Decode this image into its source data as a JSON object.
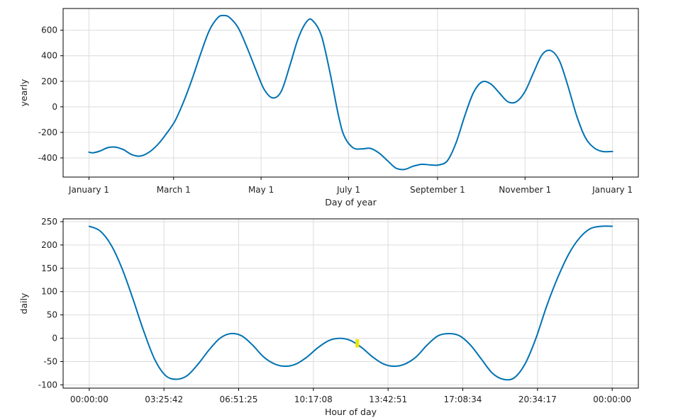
{
  "chart_data": [
    {
      "type": "line",
      "xlabel": "Day of year",
      "ylabel": "yearly",
      "x_ticks": [
        "January 1",
        "March 1",
        "May 1",
        "July 1",
        "September 1",
        "November 1",
        "January 1"
      ],
      "x_tick_days": [
        0,
        59,
        120,
        181,
        243,
        304,
        365
      ],
      "y_ticks": [
        "600",
        "400",
        "200",
        "0",
        "-200",
        "-400"
      ],
      "y_tick_values": [
        600,
        400,
        200,
        0,
        -200,
        -400
      ],
      "xlim": [
        -18,
        383
      ],
      "ylim": [
        -550,
        770
      ],
      "grid": true,
      "series": [
        {
          "color": "#0072b2",
          "x": [
            0,
            3,
            8,
            13,
            18,
            24,
            30,
            36,
            42,
            48,
            54,
            60,
            66,
            72,
            78,
            84,
            90,
            94,
            98,
            104,
            110,
            116,
            122,
            128,
            134,
            140,
            146,
            152,
            156,
            162,
            168,
            174,
            178,
            184,
            190,
            196,
            202,
            208,
            214,
            220,
            226,
            232,
            238,
            244,
            250,
            256,
            262,
            268,
            274,
            280,
            286,
            292,
            298,
            304,
            310,
            316,
            322,
            328,
            334,
            340,
            346,
            352,
            358,
            365
          ],
          "values": [
            -355,
            -360,
            -345,
            -320,
            -315,
            -335,
            -375,
            -385,
            -355,
            -295,
            -210,
            -110,
            40,
            220,
            420,
            600,
            700,
            715,
            700,
            620,
            470,
            300,
            140,
            70,
            120,
            320,
            540,
            670,
            675,
            560,
            270,
            -70,
            -230,
            -320,
            -330,
            -325,
            -360,
            -420,
            -480,
            -490,
            -465,
            -450,
            -455,
            -455,
            -420,
            -280,
            -70,
            110,
            195,
            180,
            110,
            40,
            40,
            120,
            270,
            410,
            440,
            360,
            160,
            -70,
            -240,
            -320,
            -350,
            -350
          ]
        }
      ]
    },
    {
      "type": "line",
      "xlabel": "Hour of day",
      "ylabel": "daily",
      "x_ticks": [
        "00:00:00",
        "03:25:42",
        "06:51:25",
        "10:17:08",
        "13:42:51",
        "17:08:34",
        "20:34:17",
        "00:00:00"
      ],
      "x_tick_hours": [
        0,
        3.4286,
        6.8571,
        10.2857,
        13.7143,
        17.1429,
        20.5714,
        24
      ],
      "y_ticks": [
        "250",
        "200",
        "150",
        "100",
        "50",
        "0",
        "-50",
        "-100"
      ],
      "y_tick_values": [
        250,
        200,
        150,
        100,
        50,
        0,
        -50,
        -100
      ],
      "xlim": [
        -1.2,
        25.2
      ],
      "ylim": [
        -107,
        256
      ],
      "grid": true,
      "series": [
        {
          "color": "#0072b2",
          "x": [
            0,
            0.5,
            1,
            1.5,
            2,
            2.5,
            3,
            3.5,
            4,
            4.5,
            5,
            5.5,
            6,
            6.5,
            7,
            7.5,
            8,
            8.5,
            9,
            9.5,
            10,
            10.5,
            11,
            11.5,
            12,
            12.5,
            13,
            13.5,
            14,
            14.5,
            15,
            15.5,
            16,
            16.5,
            17,
            17.5,
            18,
            18.5,
            19,
            19.5,
            20,
            20.5,
            21,
            21.5,
            22,
            22.5,
            23,
            23.5,
            24
          ],
          "values": [
            240,
            230,
            200,
            150,
            85,
            15,
            -45,
            -80,
            -88,
            -80,
            -55,
            -25,
            0,
            10,
            5,
            -15,
            -40,
            -55,
            -60,
            -55,
            -40,
            -20,
            -5,
            0,
            -5,
            -20,
            -40,
            -55,
            -60,
            -55,
            -40,
            -15,
            5,
            10,
            5,
            -15,
            -45,
            -75,
            -88,
            -85,
            -55,
            0,
            70,
            130,
            180,
            215,
            235,
            240,
            240
          ]
        }
      ],
      "highlight": {
        "color": "#f0e400",
        "x": 12.3,
        "y_range": [
          -20,
          -2
        ]
      }
    }
  ]
}
